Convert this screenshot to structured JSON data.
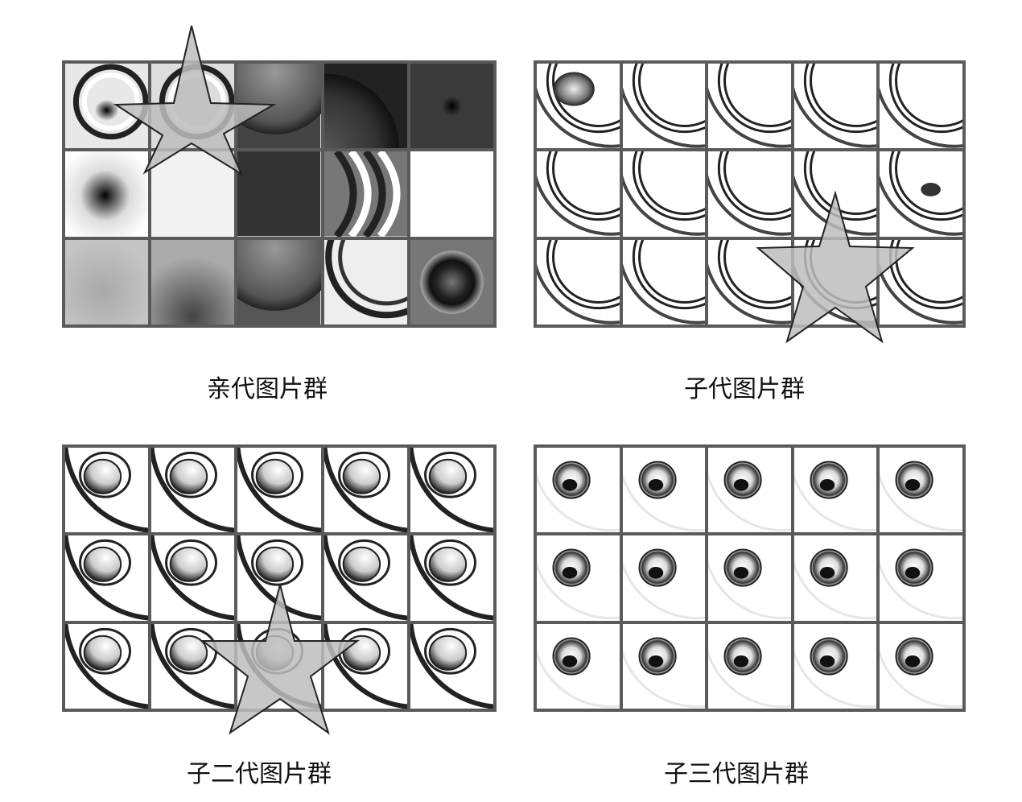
{
  "groups": [
    {
      "caption": "亲代图片群"
    },
    {
      "caption": "子代图片群"
    },
    {
      "caption": "子二代图片群"
    },
    {
      "caption": "子三代图片群"
    }
  ],
  "grid": {
    "rows": 3,
    "cols": 5
  },
  "highlight": {
    "shape": "star",
    "fill": "#bdbdbd",
    "stroke": "#222222"
  },
  "colors": {
    "frame": "#5a5a5a",
    "background": "#ffffff"
  }
}
